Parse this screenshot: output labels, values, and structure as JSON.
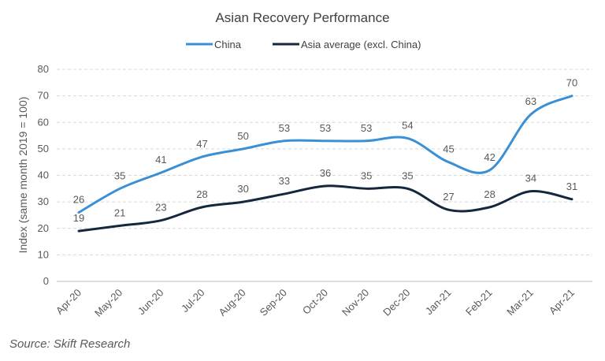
{
  "chart_data": {
    "type": "line",
    "title": "Asian Recovery Performance",
    "ylabel": "Index (same month 2019 = 100)",
    "xlabel": "",
    "categories": [
      "Apr-20",
      "May-20",
      "Jun-20",
      "Jul-20",
      "Aug-20",
      "Sep-20",
      "Oct-20",
      "Nov-20",
      "Dec-20",
      "Jan-21",
      "Feb-21",
      "Mar-21",
      "Apr-21"
    ],
    "series": [
      {
        "name": "China",
        "color": "#3b8fd4",
        "values": [
          26,
          35,
          41,
          47,
          50,
          53,
          53,
          53,
          54,
          45,
          42,
          63,
          70
        ]
      },
      {
        "name": "Asia average (excl. China)",
        "color": "#14273d",
        "values": [
          19,
          21,
          23,
          28,
          30,
          33,
          36,
          35,
          35,
          27,
          28,
          34,
          31
        ]
      }
    ],
    "ylim": [
      0,
      80
    ],
    "yticks": [
      0,
      10,
      20,
      30,
      40,
      50,
      60,
      70,
      80
    ],
    "grid": true,
    "legend_position": "top-center",
    "source": "Source: Skift Research"
  }
}
